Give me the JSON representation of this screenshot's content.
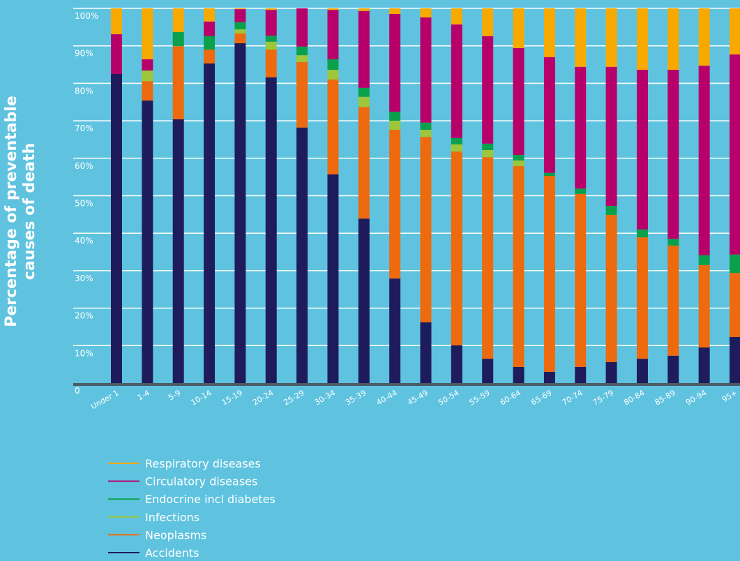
{
  "chart_data": {
    "type": "stacked_bar",
    "y_label": "Percentage of preventable causes of death",
    "categories": [
      "Under 1",
      "1-4",
      "5-9",
      "10-14",
      "15-19",
      "20-24",
      "25-29",
      "30-34",
      "35-39",
      "40-44",
      "45-49",
      "50-54",
      "55-59",
      "60-64",
      "65-69",
      "70-74",
      "75-79",
      "80-84",
      "85-89",
      "90-94",
      "95+"
    ],
    "series": [
      {
        "name": "Accidents",
        "color": "#1f1c5e",
        "values": [
          82.5,
          75.4,
          70.4,
          85.3,
          90.7,
          81.6,
          68.2,
          55.7,
          43.9,
          27.9,
          16.2,
          10.1,
          6.5,
          4.3,
          3.0,
          4.3,
          5.6,
          6.5,
          7.3,
          9.5,
          12.3
        ]
      },
      {
        "name": "Neoplasms",
        "color": "#ee6a0e",
        "values": [
          0,
          5.2,
          19.5,
          3.7,
          2.6,
          7.4,
          17.5,
          25.3,
          29.8,
          39.7,
          49.5,
          51.7,
          53.8,
          53.6,
          52.3,
          46.2,
          39.3,
          32.4,
          29.4,
          22.0,
          17.1
        ]
      },
      {
        "name": "Infections",
        "color": "#9dc63b",
        "values": [
          0,
          2.8,
          0,
          0,
          1.1,
          2.1,
          1.8,
          2.6,
          2.7,
          2.4,
          1.9,
          1.9,
          1.9,
          1.5,
          0,
          0,
          0,
          0,
          0,
          0,
          0
        ]
      },
      {
        "name": "Endocrine incl diabetes",
        "color": "#0ba04c",
        "values": [
          0,
          0,
          3.8,
          3.6,
          1.9,
          1.6,
          2.3,
          2.8,
          2.4,
          2.4,
          1.9,
          1.7,
          1.7,
          1.5,
          0.8,
          1.4,
          2.4,
          2.1,
          1.8,
          2.6,
          4.9
        ]
      },
      {
        "name": "Circulatory diseases",
        "color": "#b8006b",
        "values": [
          10.6,
          3.0,
          0,
          3.9,
          3.5,
          6.9,
          10.2,
          13.2,
          20.5,
          26.1,
          28.1,
          30.3,
          28.7,
          28.5,
          30.9,
          32.5,
          37.1,
          42.6,
          45.1,
          50.6,
          53.4
        ]
      },
      {
        "name": "Respiratory diseases",
        "color": "#f8a900",
        "values": [
          6.9,
          13.6,
          6.3,
          3.5,
          0.2,
          0.4,
          0,
          0.4,
          0.7,
          1.5,
          2.4,
          4.3,
          7.4,
          10.6,
          13.0,
          15.6,
          15.6,
          16.4,
          16.4,
          15.3,
          12.3
        ]
      }
    ],
    "ylim": [
      0,
      100
    ],
    "yticks": [
      0,
      {
        "value": 10,
        "label": "10%"
      },
      {
        "value": 20,
        "label": "20%"
      },
      {
        "value": 30,
        "label": "30%"
      },
      {
        "value": 40,
        "label": "40%"
      },
      {
        "value": 50,
        "label": "50%"
      },
      {
        "value": 60,
        "label": "60%"
      },
      {
        "value": 70,
        "label": "70%"
      },
      {
        "value": 80,
        "label": "80%"
      },
      {
        "value": 90,
        "label": "90%"
      },
      {
        "value": 100,
        "label": "100%"
      }
    ],
    "grid": true
  }
}
